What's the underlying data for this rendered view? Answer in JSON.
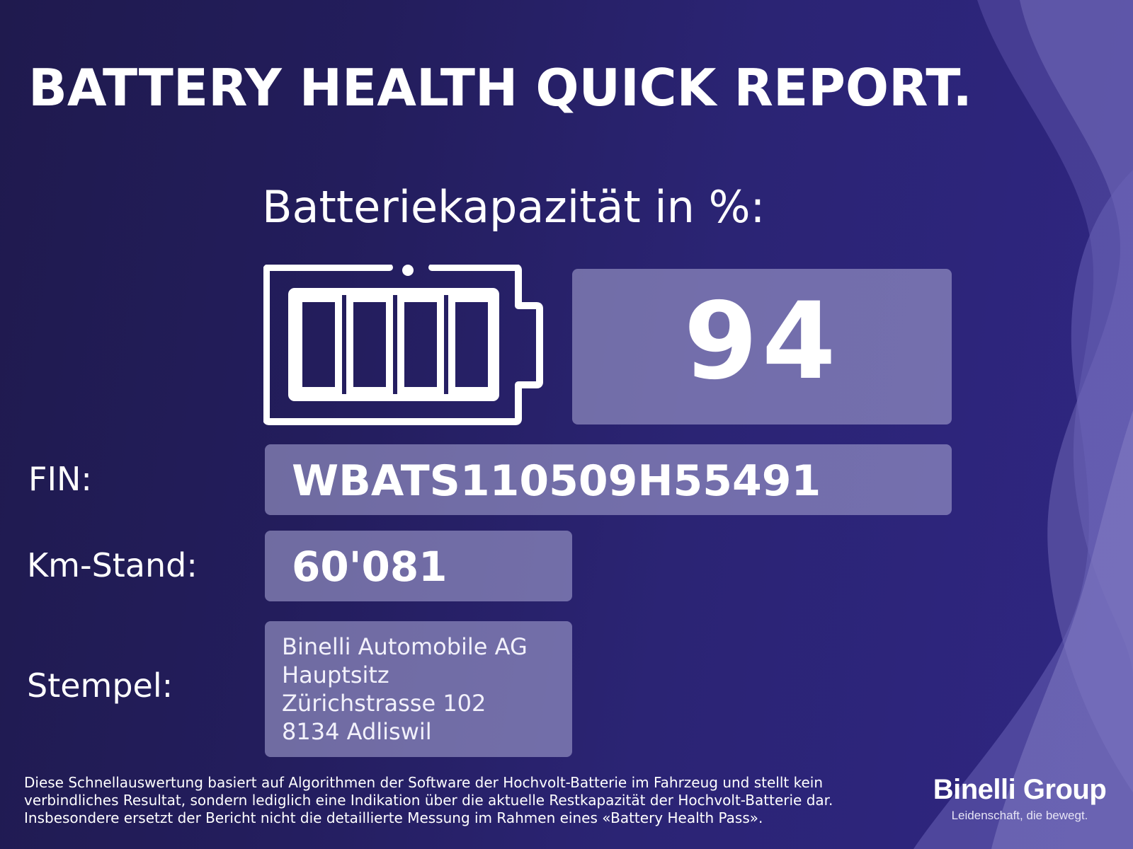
{
  "header": {
    "title": "BATTERY HEALTH QUICK REPORT.",
    "capacity_heading": "Batteriekapazität in %:"
  },
  "capacity": {
    "value": "94",
    "battery_icon": "battery-full-icon"
  },
  "fields": {
    "fin_label": "FIN:",
    "fin_value": "WBATS110509H55491",
    "km_label": "Km-Stand:",
    "km_value": "60'081",
    "stamp_label": "Stempel:",
    "stamp_lines": [
      "Binelli Automobile AG",
      "Hauptsitz",
      "Zürichstrasse 102",
      "8134 Adliswil"
    ]
  },
  "disclaimer": [
    "Diese Schnellauswertung basiert auf Algorithmen der Software der Hochvolt-Batterie im Fahrzeug und stellt kein",
    "verbindliches Resultat, sondern lediglich eine Indikation über die aktuelle Restkapazität der Hochvolt-Batterie dar.",
    "Insbesondere ersetzt der Bericht nicht die detaillierte Messung im Rahmen eines «Battery Health Pass»."
  ],
  "brand": {
    "name": "Binelli Group",
    "tagline": "Leidenschaft, die bewegt."
  },
  "colors": {
    "background_dark": "#1f1a4e",
    "background_light": "#2f2682",
    "box_fill": "#8a86c0",
    "text": "#ffffff"
  }
}
